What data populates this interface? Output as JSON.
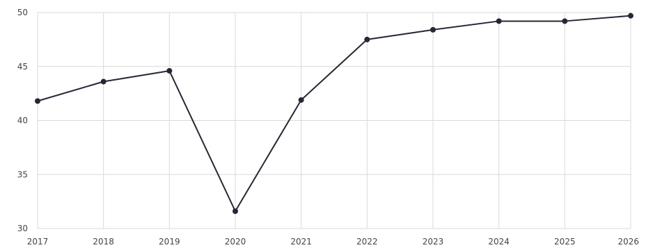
{
  "chart_data": {
    "type": "line",
    "title": "",
    "xlabel": "",
    "ylabel": "",
    "x": [
      "2017",
      "2018",
      "2019",
      "2020",
      "2021",
      "2022",
      "2023",
      "2024",
      "2025",
      "2026"
    ],
    "series": [
      {
        "values": [
          41.8,
          43.6,
          44.6,
          31.6,
          41.9,
          47.5,
          48.4,
          49.2,
          49.2,
          49.7
        ]
      }
    ],
    "ylim": [
      30,
      50
    ],
    "yticks": [
      30,
      35,
      40,
      45,
      50
    ],
    "grid": true,
    "legend": "none",
    "colors": {
      "line": "#262637",
      "marker": "#262637",
      "grid": "#d9d9d9",
      "text": "#444444"
    }
  }
}
